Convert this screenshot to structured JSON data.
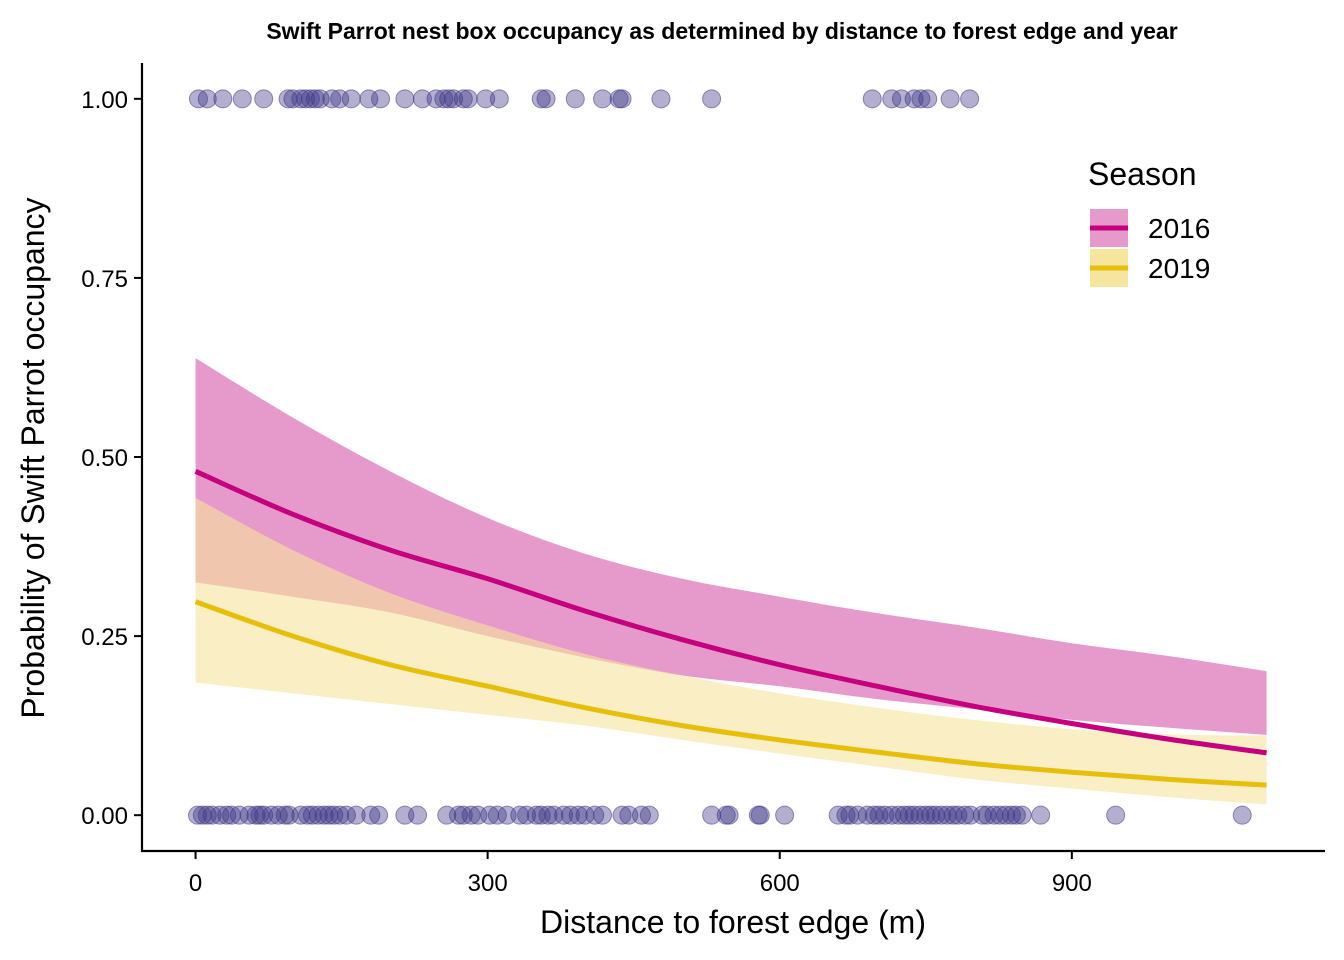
{
  "chart_data": {
    "type": "line",
    "title": "Swift Parrot nest box occupancy as determined by distance to forest edge and year",
    "xlabel": "Distance to forest edge (m)",
    "ylabel": "Probability of Swift Parrot occupancy",
    "xlim": [
      -55,
      1160
    ],
    "ylim": [
      -0.05,
      1.05
    ],
    "x_ticks": [
      0,
      300,
      600,
      900
    ],
    "y_ticks": [
      0.0,
      0.25,
      0.5,
      0.75,
      1.0
    ],
    "y_tick_labels": [
      "0.00",
      "0.25",
      "0.50",
      "0.75",
      "1.00"
    ],
    "grid": false,
    "legend": {
      "title": "Season",
      "position": "top-right",
      "entries": [
        "2016",
        "2019"
      ]
    },
    "colors": {
      "series_2016_line": "#c4007f",
      "series_2016_band": "#e69acb",
      "series_2019_line": "#e7bf0a",
      "series_2019_band": "#f6e59c",
      "points": "#3f3687"
    },
    "series": [
      {
        "name": "2016",
        "x": [
          0,
          100,
          200,
          300,
          400,
          500,
          600,
          700,
          800,
          900,
          1000,
          1100
        ],
        "fit": [
          0.48,
          0.42,
          0.37,
          0.33,
          0.285,
          0.245,
          0.21,
          0.18,
          0.152,
          0.128,
          0.106,
          0.087
        ],
        "lower": [
          0.325,
          0.305,
          0.283,
          0.25,
          0.22,
          0.195,
          0.18,
          0.162,
          0.148,
          0.133,
          0.122,
          0.112
        ],
        "upper": [
          0.638,
          0.555,
          0.48,
          0.415,
          0.365,
          0.33,
          0.305,
          0.282,
          0.262,
          0.24,
          0.222,
          0.201
        ]
      },
      {
        "name": "2019",
        "x": [
          0,
          100,
          200,
          300,
          400,
          500,
          600,
          700,
          800,
          900,
          1000,
          1100
        ],
        "fit": [
          0.298,
          0.25,
          0.21,
          0.18,
          0.15,
          0.125,
          0.105,
          0.088,
          0.072,
          0.06,
          0.05,
          0.042
        ],
        "lower": [
          0.185,
          0.17,
          0.155,
          0.14,
          0.125,
          0.105,
          0.086,
          0.068,
          0.05,
          0.037,
          0.025,
          0.015
        ],
        "upper": [
          0.443,
          0.37,
          0.31,
          0.265,
          0.225,
          0.195,
          0.17,
          0.15,
          0.133,
          0.12,
          0.113,
          0.111
        ]
      }
    ],
    "points": {
      "occupied_y1": [
        3,
        12,
        28,
        48,
        70,
        95,
        100,
        108,
        113,
        118,
        123,
        128,
        140,
        148,
        160,
        178,
        190,
        215,
        233,
        247,
        255,
        260,
        265,
        275,
        280,
        298,
        312,
        355,
        360,
        390,
        418,
        435,
        438,
        478,
        530,
        695,
        715,
        725,
        738,
        745,
        752,
        775,
        795
      ],
      "unoccupied_y0": [
        2,
        7,
        12,
        17,
        25,
        32,
        37,
        45,
        55,
        62,
        66,
        70,
        78,
        85,
        92,
        96,
        108,
        115,
        120,
        126,
        132,
        137,
        142,
        148,
        155,
        165,
        180,
        188,
        215,
        228,
        258,
        270,
        275,
        283,
        290,
        302,
        310,
        320,
        333,
        340,
        350,
        355,
        362,
        368,
        378,
        385,
        393,
        400,
        410,
        418,
        438,
        445,
        458,
        466,
        530,
        545,
        548,
        578,
        580,
        605,
        660,
        668,
        672,
        680,
        690,
        697,
        702,
        708,
        715,
        722,
        728,
        733,
        738,
        744,
        750,
        755,
        760,
        766,
        772,
        778,
        783,
        790,
        796,
        808,
        813,
        820,
        826,
        832,
        838,
        843,
        849,
        868,
        945,
        1075
      ]
    }
  }
}
